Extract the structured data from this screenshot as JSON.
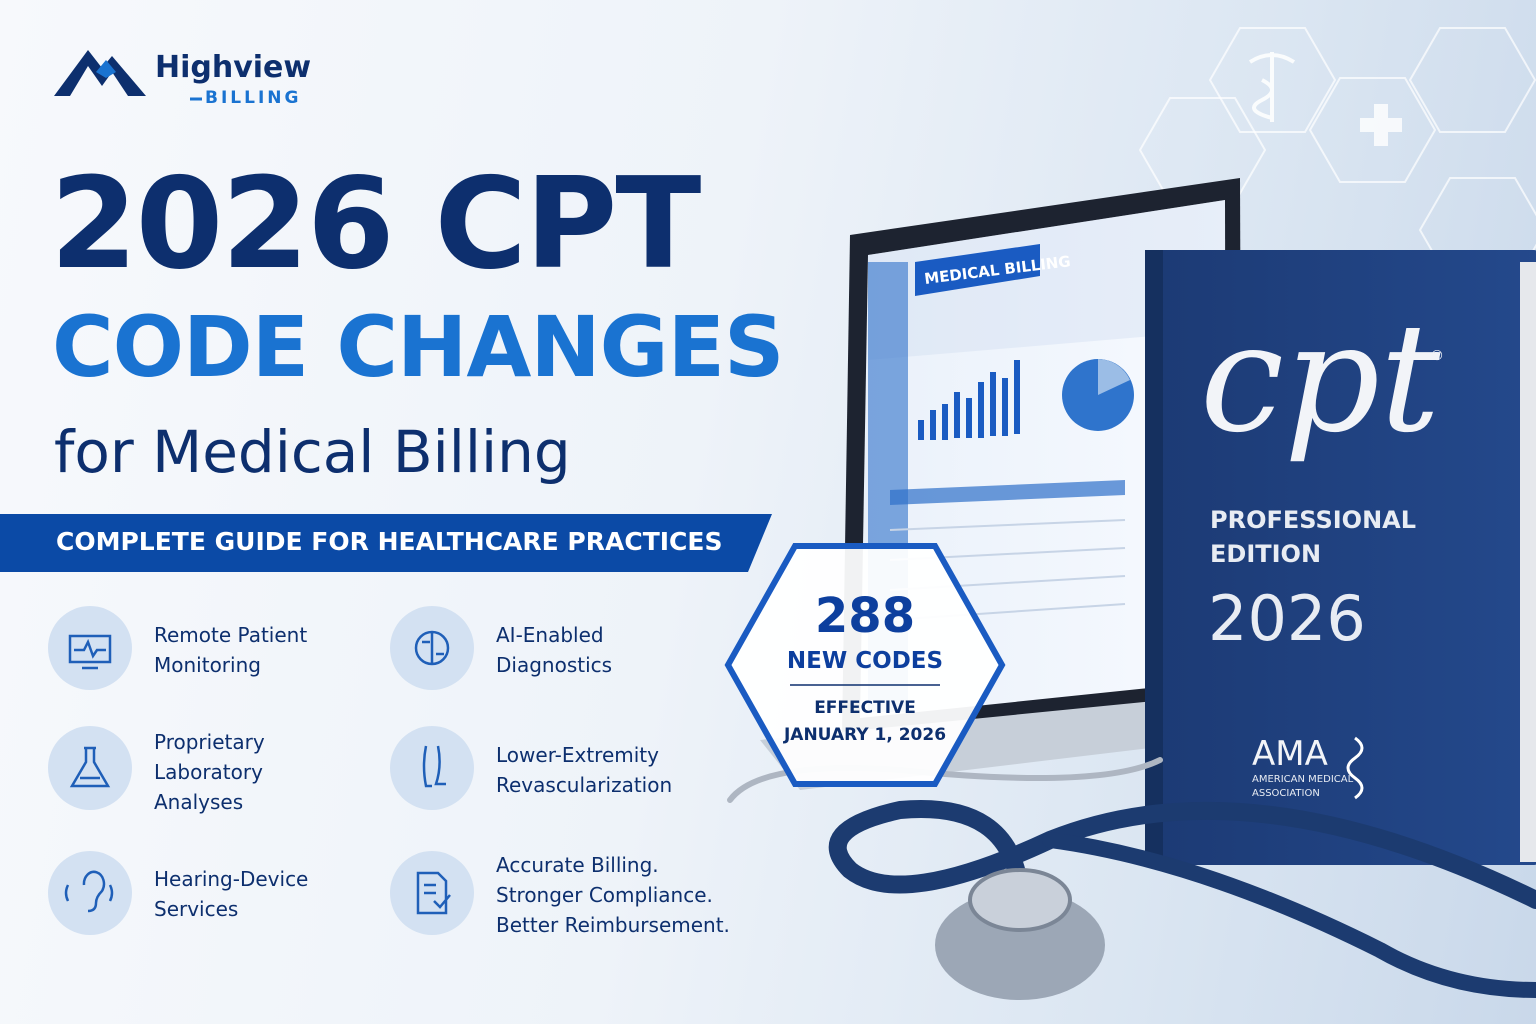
{
  "logo": {
    "name": "Highview",
    "tagline": "BILLING"
  },
  "headline": {
    "line1": "2026 CPT",
    "line2": "CODE CHANGES",
    "line3": "for Medical Billing"
  },
  "banner": "COMPLETE GUIDE FOR HEALTHCARE PRACTICES",
  "features": [
    {
      "lines": [
        "Remote Patient",
        "Monitoring"
      ]
    },
    {
      "lines": [
        "AI-Enabled",
        "Diagnostics"
      ]
    },
    {
      "lines": [
        "Proprietary",
        "Laboratory",
        "Analyses"
      ]
    },
    {
      "lines": [
        "Lower-Extremity",
        "Revascularization"
      ]
    },
    {
      "lines": [
        "Hearing-Device",
        "Services"
      ]
    },
    {
      "lines": [
        "Accurate Billing.",
        "Stronger Compliance.",
        "Better Reimbursement."
      ]
    }
  ],
  "badge": {
    "count": "288",
    "label": "NEW CODES",
    "effective": "EFFECTIVE",
    "date": "JANUARY 1, 2026"
  },
  "laptop": {
    "screen_title": "MEDICAL BILLING"
  },
  "book": {
    "title": "cpt",
    "mark": "®",
    "edition_line1": "PROFESSIONAL",
    "edition_line2": "EDITION",
    "year": "2026",
    "publisher": "AMA",
    "publisher_line1": "AMERICAN MEDICAL",
    "publisher_line2": "ASSOCIATION"
  }
}
